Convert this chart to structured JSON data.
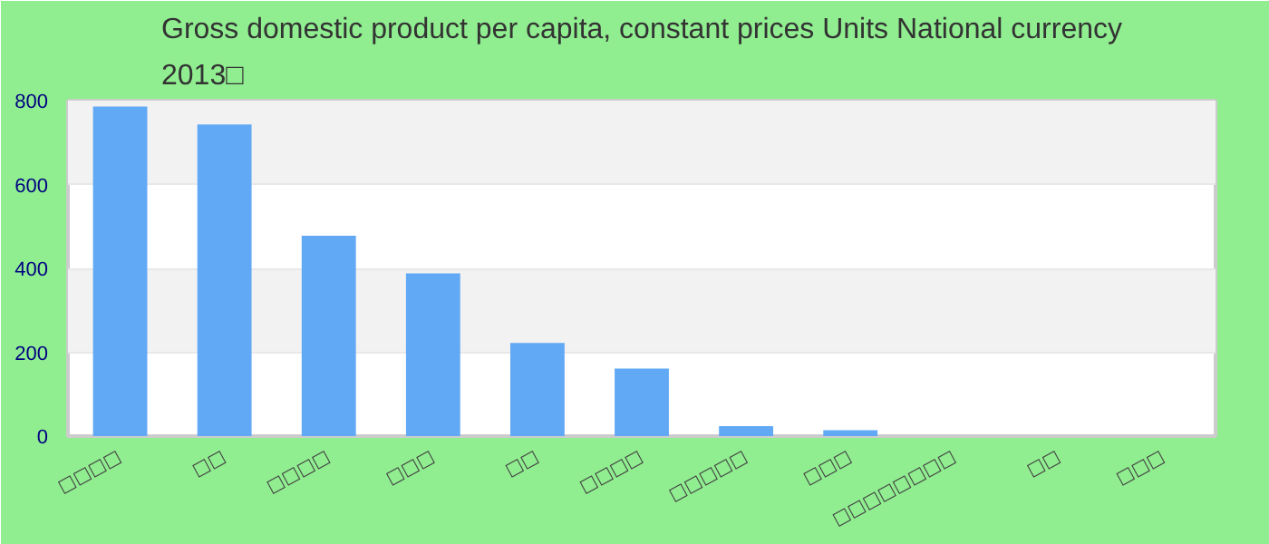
{
  "chart_data": {
    "type": "bar",
    "title": "Gross domestic product per capita, constant prices Units National currency\n2013□",
    "categories": [
      "□□□□",
      "□□",
      "□□□□",
      "□□□",
      "□□",
      "□□□□",
      "□□□□□",
      "□□□",
      "□□□□□□□□",
      "□□",
      "□□□"
    ],
    "values": [
      786,
      743,
      478,
      388,
      222,
      161,
      24,
      14,
      0,
      0,
      0
    ],
    "color": "#62a9f5",
    "ylim": [
      0,
      800
    ],
    "yticks": [
      0,
      200,
      400,
      600,
      800
    ],
    "grid": "y"
  }
}
